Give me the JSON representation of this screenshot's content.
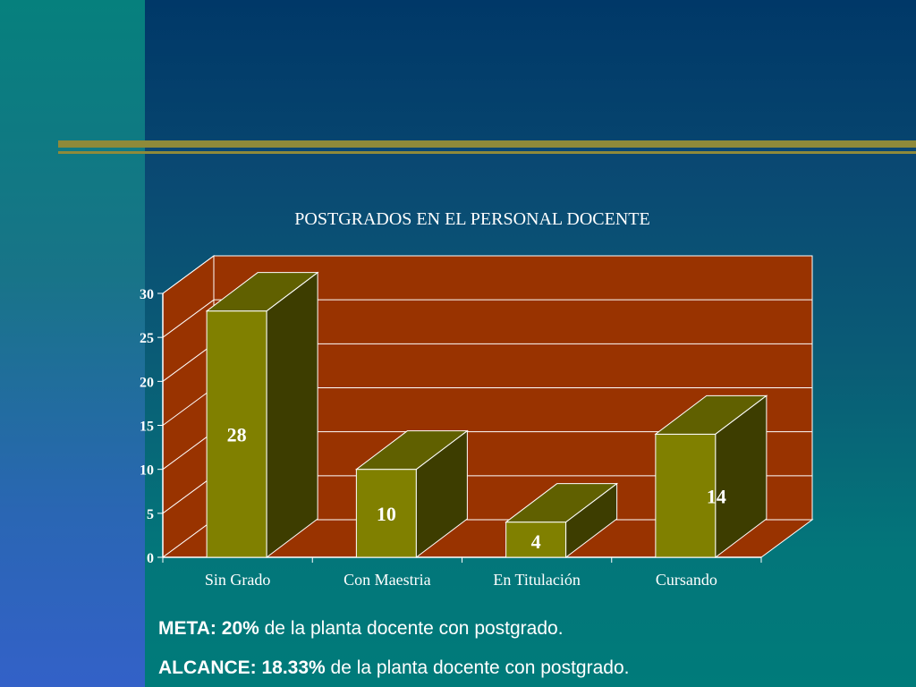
{
  "chart_data": {
    "type": "bar",
    "title": "POSTGRADOS EN EL PERSONAL DOCENTE",
    "categories": [
      "Sin Grado",
      "Con Maestria",
      "En Titulación",
      "Cursando"
    ],
    "values": [
      28,
      10,
      4,
      14
    ],
    "data_labels": [
      "28",
      "10",
      "4",
      "14"
    ],
    "ylim": [
      0,
      30
    ],
    "yticks": [
      "0",
      "5",
      "10",
      "15",
      "20",
      "25",
      "30"
    ],
    "grid": true,
    "three_d": true,
    "colors": {
      "bar_front": "#808000",
      "bar_top": "#606000",
      "bar_side": "#3d3d00",
      "back_wall": "#993300",
      "grid": "#ffffff"
    }
  },
  "notes": {
    "meta_label": "META: 20%",
    "meta_text": " de la planta docente con postgrado.",
    "alcance_label": "ALCANCE: 18.33%",
    "alcance_text": " de la planta docente con postgrado."
  }
}
